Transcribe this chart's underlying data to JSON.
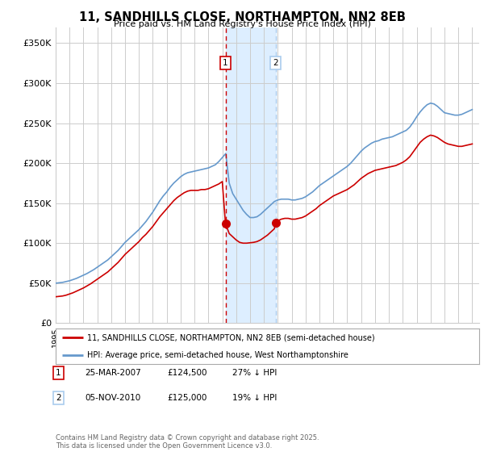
{
  "title": "11, SANDHILLS CLOSE, NORTHAMPTON, NN2 8EB",
  "subtitle": "Price paid vs. HM Land Registry's House Price Index (HPI)",
  "ylabel_ticks": [
    "£0",
    "£50K",
    "£100K",
    "£150K",
    "£200K",
    "£250K",
    "£300K",
    "£350K"
  ],
  "ytick_values": [
    0,
    50000,
    100000,
    150000,
    200000,
    250000,
    300000,
    350000
  ],
  "ylim": [
    0,
    370000
  ],
  "xlim_start": 1995.0,
  "xlim_end": 2025.5,
  "legend_line1": "11, SANDHILLS CLOSE, NORTHAMPTON, NN2 8EB (semi-detached house)",
  "legend_line2": "HPI: Average price, semi-detached house, West Northamptonshire",
  "transaction1_date": "25-MAR-2007",
  "transaction1_price": "£124,500",
  "transaction1_hpi": "27% ↓ HPI",
  "transaction2_date": "05-NOV-2010",
  "transaction2_price": "£125,000",
  "transaction2_hpi": "19% ↓ HPI",
  "footer": "Contains HM Land Registry data © Crown copyright and database right 2025.\nThis data is licensed under the Open Government Licence v3.0.",
  "red_color": "#cc0000",
  "blue_color": "#6699cc",
  "shading_color": "#ddeeff",
  "marker1_x": 2007.23,
  "marker2_x": 2010.84,
  "marker1_y": 124500,
  "marker2_y": 125000,
  "bg_color": "#ffffff",
  "grid_color": "#cccccc",
  "hpi_x": [
    1995.0,
    1995.25,
    1995.5,
    1995.75,
    1996.0,
    1996.25,
    1996.5,
    1996.75,
    1997.0,
    1997.25,
    1997.5,
    1997.75,
    1998.0,
    1998.25,
    1998.5,
    1998.75,
    1999.0,
    1999.25,
    1999.5,
    1999.75,
    2000.0,
    2000.25,
    2000.5,
    2000.75,
    2001.0,
    2001.25,
    2001.5,
    2001.75,
    2002.0,
    2002.25,
    2002.5,
    2002.75,
    2003.0,
    2003.25,
    2003.5,
    2003.75,
    2004.0,
    2004.25,
    2004.5,
    2004.75,
    2005.0,
    2005.25,
    2005.5,
    2005.75,
    2006.0,
    2006.25,
    2006.5,
    2006.75,
    2007.0,
    2007.25,
    2007.5,
    2007.75,
    2008.0,
    2008.25,
    2008.5,
    2008.75,
    2009.0,
    2009.25,
    2009.5,
    2009.75,
    2010.0,
    2010.25,
    2010.5,
    2010.75,
    2011.0,
    2011.25,
    2011.5,
    2011.75,
    2012.0,
    2012.25,
    2012.5,
    2012.75,
    2013.0,
    2013.25,
    2013.5,
    2013.75,
    2014.0,
    2014.25,
    2014.5,
    2014.75,
    2015.0,
    2015.25,
    2015.5,
    2015.75,
    2016.0,
    2016.25,
    2016.5,
    2016.75,
    2017.0,
    2017.25,
    2017.5,
    2017.75,
    2018.0,
    2018.25,
    2018.5,
    2018.75,
    2019.0,
    2019.25,
    2019.5,
    2019.75,
    2020.0,
    2020.25,
    2020.5,
    2020.75,
    2021.0,
    2021.25,
    2021.5,
    2021.75,
    2022.0,
    2022.25,
    2022.5,
    2022.75,
    2023.0,
    2023.25,
    2023.5,
    2023.75,
    2024.0,
    2024.25,
    2024.5,
    2024.75,
    2025.0
  ],
  "hpi_y": [
    50000,
    50500,
    51000,
    52000,
    53000,
    54500,
    56000,
    58000,
    60000,
    62000,
    64500,
    67000,
    70000,
    73000,
    76000,
    79000,
    83000,
    87000,
    91000,
    96000,
    101000,
    105000,
    109000,
    113000,
    117000,
    122000,
    127000,
    133000,
    139000,
    146000,
    153000,
    159000,
    164000,
    170000,
    175000,
    179000,
    183000,
    186000,
    188000,
    189000,
    190000,
    191000,
    192000,
    193000,
    194000,
    196000,
    198000,
    202000,
    207000,
    212000,
    175000,
    162000,
    155000,
    148000,
    141000,
    136000,
    132000,
    132000,
    133000,
    136000,
    140000,
    144000,
    148000,
    152000,
    154000,
    155000,
    155000,
    155000,
    154000,
    154000,
    155000,
    156000,
    158000,
    161000,
    164000,
    168000,
    172000,
    175000,
    178000,
    181000,
    184000,
    187000,
    190000,
    193000,
    196000,
    200000,
    205000,
    210000,
    215000,
    219000,
    222000,
    225000,
    227000,
    228000,
    230000,
    231000,
    232000,
    233000,
    235000,
    237000,
    239000,
    241000,
    245000,
    251000,
    258000,
    264000,
    269000,
    273000,
    275000,
    274000,
    271000,
    267000,
    263000,
    262000,
    261000,
    260000,
    260000,
    261000,
    263000,
    265000,
    267000
  ],
  "red_x": [
    1995.0,
    1995.25,
    1995.5,
    1995.75,
    1996.0,
    1996.25,
    1996.5,
    1996.75,
    1997.0,
    1997.25,
    1997.5,
    1997.75,
    1998.0,
    1998.25,
    1998.5,
    1998.75,
    1999.0,
    1999.25,
    1999.5,
    1999.75,
    2000.0,
    2000.25,
    2000.5,
    2000.75,
    2001.0,
    2001.25,
    2001.5,
    2001.75,
    2002.0,
    2002.25,
    2002.5,
    2002.75,
    2003.0,
    2003.25,
    2003.5,
    2003.75,
    2004.0,
    2004.25,
    2004.5,
    2004.75,
    2005.0,
    2005.25,
    2005.5,
    2005.75,
    2006.0,
    2006.25,
    2006.5,
    2006.75,
    2007.0,
    2007.23,
    2007.5,
    2007.75,
    2008.0,
    2008.25,
    2008.5,
    2008.75,
    2009.0,
    2009.25,
    2009.5,
    2009.75,
    2010.0,
    2010.25,
    2010.5,
    2010.75,
    2010.84,
    2011.0,
    2011.25,
    2011.5,
    2011.75,
    2012.0,
    2012.25,
    2012.5,
    2012.75,
    2013.0,
    2013.25,
    2013.5,
    2013.75,
    2014.0,
    2014.25,
    2014.5,
    2014.75,
    2015.0,
    2015.25,
    2015.5,
    2015.75,
    2016.0,
    2016.25,
    2016.5,
    2016.75,
    2017.0,
    2017.25,
    2017.5,
    2017.75,
    2018.0,
    2018.25,
    2018.5,
    2018.75,
    2019.0,
    2019.25,
    2019.5,
    2019.75,
    2020.0,
    2020.25,
    2020.5,
    2020.75,
    2021.0,
    2021.25,
    2021.5,
    2021.75,
    2022.0,
    2022.25,
    2022.5,
    2022.75,
    2023.0,
    2023.25,
    2023.5,
    2023.75,
    2024.0,
    2024.25,
    2024.5,
    2024.75,
    2025.0
  ],
  "red_y": [
    33000,
    33500,
    34000,
    35000,
    36500,
    38000,
    40000,
    42000,
    44000,
    46500,
    49000,
    52000,
    55000,
    58000,
    61000,
    64000,
    68000,
    72000,
    76000,
    81000,
    86000,
    90000,
    94000,
    98000,
    102000,
    107000,
    111000,
    116000,
    121000,
    127000,
    133000,
    138000,
    143000,
    148000,
    153000,
    157000,
    160000,
    163000,
    165000,
    166000,
    166000,
    166000,
    167000,
    167000,
    168000,
    170000,
    172000,
    174000,
    177000,
    124500,
    112000,
    108000,
    104000,
    101000,
    100000,
    100000,
    100500,
    101000,
    102000,
    104000,
    107000,
    110000,
    114000,
    118000,
    125000,
    128000,
    130000,
    131000,
    131000,
    130000,
    130000,
    131000,
    132000,
    134000,
    137000,
    140000,
    143000,
    147000,
    150000,
    153000,
    156000,
    159000,
    161000,
    163000,
    165000,
    167000,
    170000,
    173000,
    177000,
    181000,
    184000,
    187000,
    189000,
    191000,
    192000,
    193000,
    194000,
    195000,
    196000,
    197000,
    199000,
    201000,
    204000,
    208000,
    214000,
    220000,
    226000,
    230000,
    233000,
    235000,
    234000,
    232000,
    229000,
    226000,
    224000,
    223000,
    222000,
    221000,
    221000,
    222000,
    223000,
    224000
  ]
}
